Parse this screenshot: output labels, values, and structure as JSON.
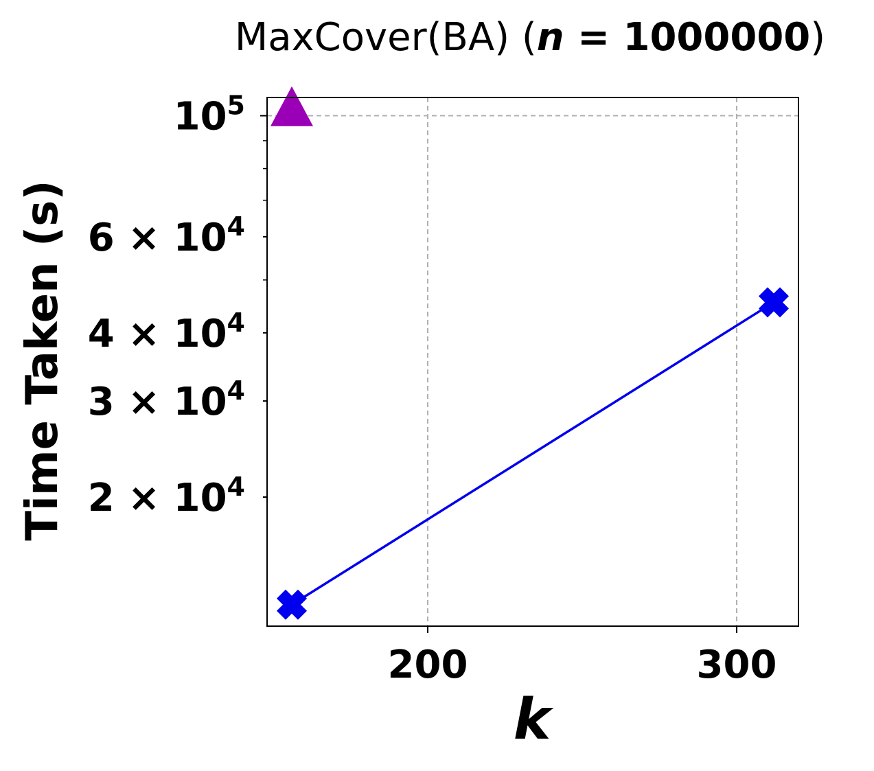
{
  "chart_data": {
    "type": "line",
    "title": {
      "prefix": "MaxCover(BA) (",
      "var": "n",
      "eq": " = 1000000",
      "suffix": ")"
    },
    "xlabel": "k",
    "ylabel": "Time Taken (s)",
    "xlim": [
      148,
      320
    ],
    "ylim": [
      11600,
      108000
    ],
    "yscale": "log",
    "grid": true,
    "x_ticks": [
      {
        "value": 200,
        "label": "200"
      },
      {
        "value": 300,
        "label": "300"
      }
    ],
    "y_ticks": [
      {
        "value": 20000,
        "mant": "2",
        "times": " × ",
        "base": "10",
        "exp": "4"
      },
      {
        "value": 30000,
        "mant": "3",
        "times": " × ",
        "base": "10",
        "exp": "4"
      },
      {
        "value": 40000,
        "mant": "4",
        "times": " × ",
        "base": "10",
        "exp": "4"
      },
      {
        "value": 60000,
        "mant": "6",
        "times": " × ",
        "base": "10",
        "exp": "4"
      },
      {
        "value": 100000,
        "mant": "",
        "times": "",
        "base": "10",
        "exp": "5"
      }
    ],
    "y_minor_ticks": [
      50000,
      70000,
      80000,
      90000
    ],
    "series": [
      {
        "marker": "x",
        "line": true,
        "color": "#0000ee",
        "points": [
          {
            "x": 156,
            "y": 12700
          },
          {
            "x": 312,
            "y": 45500
          }
        ]
      },
      {
        "marker": "triangle",
        "line": false,
        "color": "#9a00b5",
        "points": [
          {
            "x": 156,
            "y": 102000
          }
        ]
      }
    ]
  }
}
